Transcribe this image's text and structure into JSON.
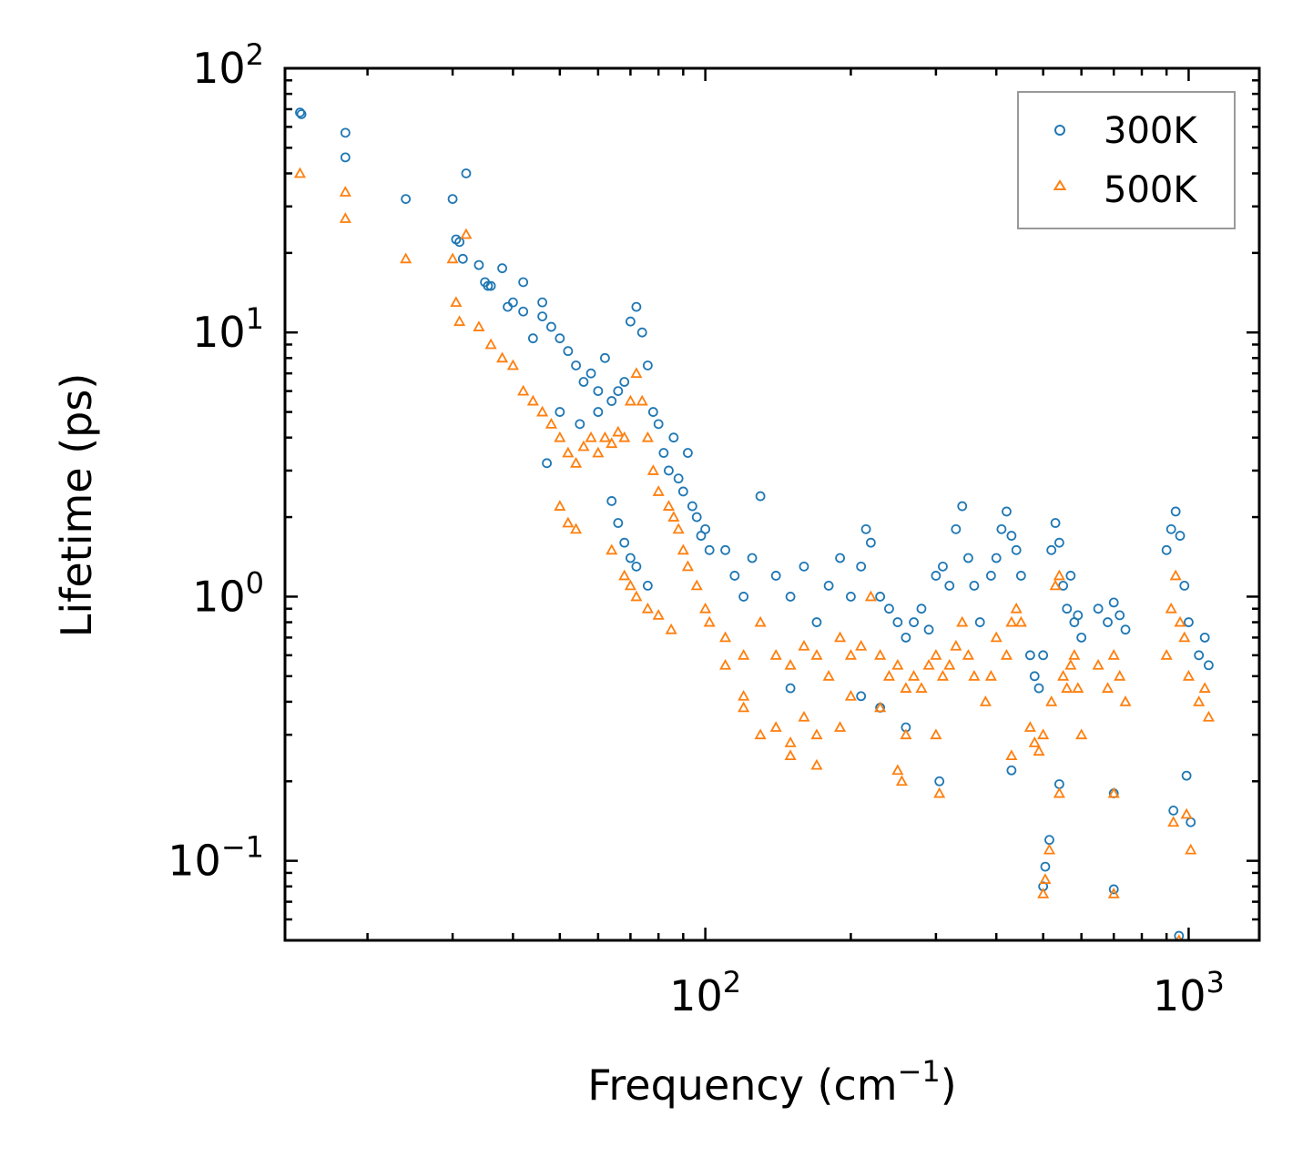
{
  "chart_data": {
    "type": "scatter",
    "title": "",
    "xlabel": "Frequency (cm",
    "xlabel_sup": "−1",
    "xlabel_end": ")",
    "ylabel": "Lifetime (ps)",
    "xscale": "log",
    "yscale": "log",
    "xlim": [
      13.5,
      1400
    ],
    "ylim": [
      0.05,
      100
    ],
    "x_ticks": [
      {
        "value": 100,
        "base": "10",
        "exp": "2"
      },
      {
        "value": 1000,
        "base": "10",
        "exp": "3"
      }
    ],
    "y_ticks": [
      {
        "value": 0.1,
        "base": "10",
        "exp": "−1"
      },
      {
        "value": 1,
        "base": "10",
        "exp": "0"
      },
      {
        "value": 10,
        "base": "10",
        "exp": "1"
      },
      {
        "value": 100,
        "base": "10",
        "exp": "2"
      }
    ],
    "legend_position": "top-right",
    "series": [
      {
        "name": "300K",
        "marker": "circle",
        "color": "#1f77b4",
        "points": [
          [
            14.5,
            68
          ],
          [
            14.6,
            67
          ],
          [
            18,
            57
          ],
          [
            18,
            46
          ],
          [
            24,
            32
          ],
          [
            30,
            32
          ],
          [
            30.5,
            22.5
          ],
          [
            31,
            22
          ],
          [
            31.5,
            19
          ],
          [
            32,
            40
          ],
          [
            34,
            18
          ],
          [
            35,
            15.5
          ],
          [
            35.5,
            15
          ],
          [
            36,
            15
          ],
          [
            38,
            17.5
          ],
          [
            39,
            12.5
          ],
          [
            40,
            13
          ],
          [
            42,
            12
          ],
          [
            42,
            15.5
          ],
          [
            44,
            9.5
          ],
          [
            46,
            13
          ],
          [
            46,
            11.5
          ],
          [
            48,
            10.5
          ],
          [
            50,
            9.5
          ],
          [
            52,
            8.5
          ],
          [
            54,
            7.5
          ],
          [
            56,
            6.5
          ],
          [
            58,
            7
          ],
          [
            60,
            6
          ],
          [
            62,
            8
          ],
          [
            64,
            5.5
          ],
          [
            66,
            6
          ],
          [
            68,
            6.5
          ],
          [
            70,
            11
          ],
          [
            72,
            12.5
          ],
          [
            74,
            10
          ],
          [
            76,
            7.5
          ],
          [
            78,
            5
          ],
          [
            80,
            4.5
          ],
          [
            82,
            3.5
          ],
          [
            84,
            3
          ],
          [
            86,
            4
          ],
          [
            88,
            2.8
          ],
          [
            90,
            2.5
          ],
          [
            92,
            3.5
          ],
          [
            94,
            2.2
          ],
          [
            96,
            2
          ],
          [
            98,
            1.7
          ],
          [
            100,
            1.8
          ],
          [
            102,
            1.5
          ],
          [
            64,
            2.3
          ],
          [
            66,
            1.9
          ],
          [
            68,
            1.6
          ],
          [
            70,
            1.4
          ],
          [
            72,
            1.3
          ],
          [
            76,
            1.1
          ],
          [
            47,
            3.2
          ],
          [
            50,
            5
          ],
          [
            55,
            4.5
          ],
          [
            60,
            5
          ],
          [
            110,
            1.5
          ],
          [
            115,
            1.2
          ],
          [
            120,
            1
          ],
          [
            125,
            1.4
          ],
          [
            130,
            2.4
          ],
          [
            140,
            1.2
          ],
          [
            150,
            1
          ],
          [
            160,
            1.3
          ],
          [
            170,
            0.8
          ],
          [
            180,
            1.1
          ],
          [
            190,
            1.4
          ],
          [
            200,
            1
          ],
          [
            210,
            1.3
          ],
          [
            215,
            1.8
          ],
          [
            220,
            1.6
          ],
          [
            230,
            1
          ],
          [
            240,
            0.9
          ],
          [
            250,
            0.8
          ],
          [
            260,
            0.7
          ],
          [
            270,
            0.8
          ],
          [
            280,
            0.9
          ],
          [
            290,
            0.75
          ],
          [
            300,
            1.2
          ],
          [
            310,
            1.3
          ],
          [
            320,
            1.1
          ],
          [
            330,
            1.8
          ],
          [
            340,
            2.2
          ],
          [
            350,
            1.4
          ],
          [
            360,
            1.1
          ],
          [
            370,
            0.8
          ],
          [
            390,
            1.2
          ],
          [
            400,
            1.4
          ],
          [
            410,
            1.8
          ],
          [
            420,
            2.1
          ],
          [
            430,
            1.7
          ],
          [
            440,
            1.5
          ],
          [
            450,
            1.2
          ],
          [
            470,
            0.6
          ],
          [
            480,
            0.5
          ],
          [
            490,
            0.45
          ],
          [
            500,
            0.6
          ],
          [
            520,
            1.5
          ],
          [
            530,
            1.9
          ],
          [
            540,
            1.6
          ],
          [
            550,
            1.1
          ],
          [
            560,
            0.9
          ],
          [
            570,
            1.2
          ],
          [
            580,
            0.8
          ],
          [
            590,
            0.85
          ],
          [
            600,
            0.7
          ],
          [
            650,
            0.9
          ],
          [
            680,
            0.8
          ],
          [
            700,
            0.95
          ],
          [
            720,
            0.85
          ],
          [
            740,
            0.75
          ],
          [
            900,
            1.5
          ],
          [
            920,
            1.8
          ],
          [
            940,
            2.1
          ],
          [
            960,
            1.7
          ],
          [
            980,
            1.1
          ],
          [
            1000,
            0.8
          ],
          [
            1050,
            0.6
          ],
          [
            1080,
            0.7
          ],
          [
            1100,
            0.55
          ],
          [
            150,
            0.45
          ],
          [
            210,
            0.42
          ],
          [
            230,
            0.38
          ],
          [
            260,
            0.32
          ],
          [
            305,
            0.2
          ],
          [
            430,
            0.22
          ],
          [
            500,
            0.08
          ],
          [
            505,
            0.095
          ],
          [
            515,
            0.12
          ],
          [
            540,
            0.195
          ],
          [
            700,
            0.18
          ],
          [
            700,
            0.078
          ],
          [
            930,
            0.155
          ],
          [
            955,
            0.052
          ],
          [
            990,
            0.21
          ],
          [
            1010,
            0.14
          ]
        ]
      },
      {
        "name": "500K",
        "marker": "triangle",
        "color": "#ff7f0e",
        "points": [
          [
            14.5,
            40
          ],
          [
            18,
            34
          ],
          [
            18,
            27
          ],
          [
            24,
            19
          ],
          [
            30,
            19
          ],
          [
            30.5,
            13
          ],
          [
            31,
            11
          ],
          [
            32,
            23.5
          ],
          [
            34,
            10.5
          ],
          [
            36,
            9
          ],
          [
            38,
            8
          ],
          [
            40,
            7.5
          ],
          [
            42,
            6
          ],
          [
            44,
            5.5
          ],
          [
            46,
            5
          ],
          [
            48,
            4.5
          ],
          [
            50,
            4
          ],
          [
            52,
            3.5
          ],
          [
            54,
            3.2
          ],
          [
            56,
            3.7
          ],
          [
            58,
            4
          ],
          [
            60,
            3.5
          ],
          [
            62,
            4
          ],
          [
            64,
            3.8
          ],
          [
            66,
            4.2
          ],
          [
            68,
            4
          ],
          [
            70,
            5.5
          ],
          [
            72,
            7
          ],
          [
            74,
            5.5
          ],
          [
            76,
            4
          ],
          [
            78,
            3
          ],
          [
            80,
            2.5
          ],
          [
            84,
            2.2
          ],
          [
            86,
            2
          ],
          [
            88,
            1.8
          ],
          [
            90,
            1.5
          ],
          [
            92,
            1.3
          ],
          [
            96,
            1.1
          ],
          [
            100,
            0.9
          ],
          [
            102,
            0.8
          ],
          [
            50,
            2.2
          ],
          [
            52,
            1.9
          ],
          [
            54,
            1.8
          ],
          [
            64,
            1.5
          ],
          [
            68,
            1.2
          ],
          [
            70,
            1.1
          ],
          [
            72,
            1
          ],
          [
            76,
            0.9
          ],
          [
            80,
            0.85
          ],
          [
            85,
            0.75
          ],
          [
            110,
            0.7
          ],
          [
            120,
            0.6
          ],
          [
            130,
            0.8
          ],
          [
            140,
            0.6
          ],
          [
            150,
            0.55
          ],
          [
            160,
            0.65
          ],
          [
            170,
            0.6
          ],
          [
            180,
            0.5
          ],
          [
            190,
            0.7
          ],
          [
            200,
            0.6
          ],
          [
            210,
            0.65
          ],
          [
            220,
            1
          ],
          [
            230,
            0.6
          ],
          [
            240,
            0.5
          ],
          [
            250,
            0.55
          ],
          [
            260,
            0.45
          ],
          [
            270,
            0.5
          ],
          [
            280,
            0.45
          ],
          [
            290,
            0.55
          ],
          [
            300,
            0.6
          ],
          [
            310,
            0.5
          ],
          [
            320,
            0.55
          ],
          [
            330,
            0.65
          ],
          [
            340,
            0.8
          ],
          [
            350,
            0.6
          ],
          [
            360,
            0.5
          ],
          [
            380,
            0.4
          ],
          [
            390,
            0.5
          ],
          [
            400,
            0.7
          ],
          [
            420,
            0.6
          ],
          [
            430,
            0.8
          ],
          [
            440,
            0.9
          ],
          [
            450,
            0.8
          ],
          [
            470,
            0.32
          ],
          [
            480,
            0.28
          ],
          [
            490,
            0.26
          ],
          [
            500,
            0.3
          ],
          [
            520,
            0.4
          ],
          [
            530,
            1.1
          ],
          [
            540,
            1.2
          ],
          [
            550,
            0.5
          ],
          [
            560,
            0.45
          ],
          [
            570,
            0.55
          ],
          [
            580,
            0.6
          ],
          [
            590,
            0.45
          ],
          [
            600,
            0.3
          ],
          [
            650,
            0.55
          ],
          [
            680,
            0.45
          ],
          [
            700,
            0.6
          ],
          [
            720,
            0.5
          ],
          [
            740,
            0.4
          ],
          [
            900,
            0.6
          ],
          [
            920,
            0.9
          ],
          [
            940,
            1.2
          ],
          [
            960,
            0.8
          ],
          [
            980,
            0.7
          ],
          [
            1000,
            0.5
          ],
          [
            1050,
            0.4
          ],
          [
            1080,
            0.45
          ],
          [
            1100,
            0.35
          ],
          [
            110,
            0.55
          ],
          [
            120,
            0.42
          ],
          [
            130,
            0.3
          ],
          [
            150,
            0.28
          ],
          [
            170,
            0.3
          ],
          [
            190,
            0.32
          ],
          [
            200,
            0.42
          ],
          [
            230,
            0.38
          ],
          [
            260,
            0.3
          ],
          [
            300,
            0.3
          ],
          [
            120,
            0.38
          ],
          [
            140,
            0.32
          ],
          [
            150,
            0.25
          ],
          [
            160,
            0.35
          ],
          [
            170,
            0.23
          ],
          [
            250,
            0.22
          ],
          [
            255,
            0.2
          ],
          [
            305,
            0.18
          ],
          [
            430,
            0.25
          ],
          [
            500,
            0.075
          ],
          [
            505,
            0.085
          ],
          [
            515,
            0.11
          ],
          [
            540,
            0.18
          ],
          [
            700,
            0.18
          ],
          [
            700,
            0.075
          ],
          [
            930,
            0.14
          ],
          [
            955,
            0.05
          ],
          [
            990,
            0.15
          ],
          [
            1010,
            0.11
          ]
        ]
      }
    ]
  }
}
